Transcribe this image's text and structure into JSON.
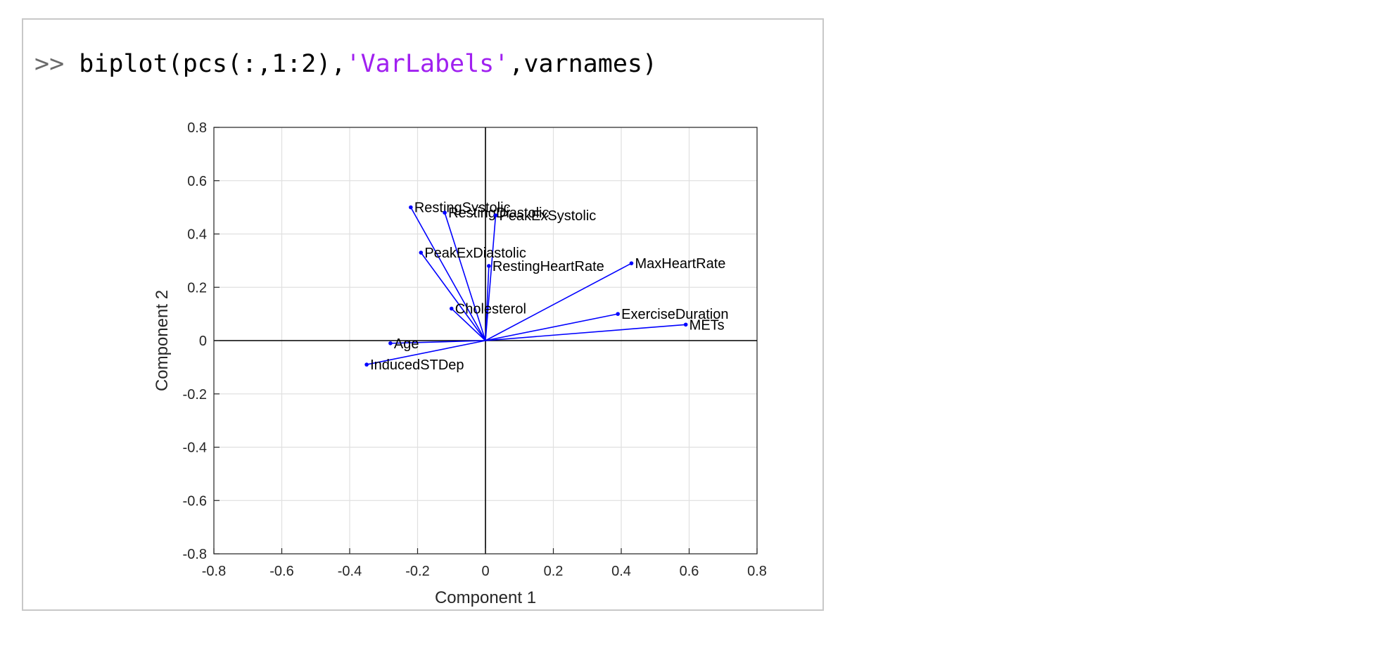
{
  "command": {
    "prompt": ">>",
    "code_before": " biplot(pcs(:,1:2),",
    "string_arg": "'VarLabels'",
    "code_after": ",varnames)"
  },
  "colors": {
    "vector": "#0000ff",
    "axis_line": "#000000",
    "grid": "#e0e0e0",
    "string": "#a020f0"
  },
  "chart_data": {
    "type": "scatter",
    "subtype": "biplot",
    "title": "",
    "xlabel": "Component 1",
    "ylabel": "Component 2",
    "xlim": [
      -0.8,
      0.8
    ],
    "ylim": [
      -0.8,
      0.8
    ],
    "xticks": [
      -0.8,
      -0.6,
      -0.4,
      -0.2,
      0,
      0.2,
      0.4,
      0.6,
      0.8
    ],
    "yticks": [
      -0.8,
      -0.6,
      -0.4,
      -0.2,
      0,
      0.2,
      0.4,
      0.6,
      0.8
    ],
    "xtick_labels": [
      "-0.8",
      "-0.6",
      "-0.4",
      "-0.2",
      "0",
      "0.2",
      "0.4",
      "0.6",
      "0.8"
    ],
    "ytick_labels": [
      "-0.8",
      "-0.6",
      "-0.4",
      "-0.2",
      "0",
      "0.2",
      "0.4",
      "0.6",
      "0.8"
    ],
    "grid": true,
    "vectors": [
      {
        "name": "RestingSystolic",
        "x": -0.22,
        "y": 0.5
      },
      {
        "name": "RestingDiastolic",
        "x": -0.12,
        "y": 0.48
      },
      {
        "name": "PeakExSystolic",
        "x": 0.03,
        "y": 0.47
      },
      {
        "name": "PeakExDiastolic",
        "x": -0.19,
        "y": 0.33
      },
      {
        "name": "RestingHeartRate",
        "x": 0.01,
        "y": 0.28
      },
      {
        "name": "MaxHeartRate",
        "x": 0.43,
        "y": 0.29
      },
      {
        "name": "Cholesterol",
        "x": -0.1,
        "y": 0.12
      },
      {
        "name": "ExerciseDuration",
        "x": 0.39,
        "y": 0.1
      },
      {
        "name": "METs",
        "x": 0.59,
        "y": 0.06
      },
      {
        "name": "Age",
        "x": -0.28,
        "y": -0.01
      },
      {
        "name": "InducedSTDep",
        "x": -0.35,
        "y": -0.09
      }
    ]
  }
}
